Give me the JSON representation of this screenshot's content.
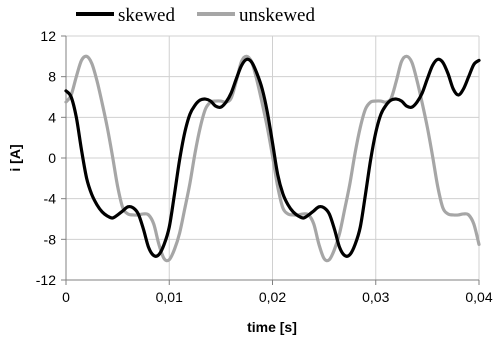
{
  "chart_data": {
    "type": "line",
    "title": "",
    "xlabel": "time [s]",
    "ylabel": "i [A]",
    "xlim": [
      0,
      0.04
    ],
    "ylim": [
      -12,
      12
    ],
    "x_ticks": [
      0,
      0.01,
      0.02,
      0.03,
      0.04
    ],
    "x_tick_labels": [
      "0",
      "0,01",
      "0,02",
      "0,03",
      "0,04"
    ],
    "y_ticks": [
      -12,
      -8,
      -4,
      0,
      4,
      8,
      12
    ],
    "y_tick_labels": [
      "-12",
      "-8",
      "-4",
      "0",
      "4",
      "8",
      "12"
    ],
    "grid": true,
    "legend_position": "top",
    "series": [
      {
        "name": "skewed",
        "color": "#000000",
        "points": [
          [
            0,
            6.6
          ],
          [
            0.0005,
            6.0
          ],
          [
            0.001,
            4.0
          ],
          [
            0.0015,
            0.8
          ],
          [
            0.002,
            -2.0
          ],
          [
            0.0025,
            -3.6
          ],
          [
            0.003,
            -4.6
          ],
          [
            0.0035,
            -5.3
          ],
          [
            0.004,
            -5.7
          ],
          [
            0.0045,
            -5.9
          ],
          [
            0.005,
            -5.6
          ],
          [
            0.0055,
            -5.2
          ],
          [
            0.006,
            -4.8
          ],
          [
            0.0065,
            -4.9
          ],
          [
            0.007,
            -5.5
          ],
          [
            0.0075,
            -7.0
          ],
          [
            0.008,
            -8.8
          ],
          [
            0.0085,
            -9.6
          ],
          [
            0.009,
            -9.5
          ],
          [
            0.0095,
            -8.5
          ],
          [
            0.01,
            -6.8
          ],
          [
            0.0105,
            -3.6
          ],
          [
            0.011,
            -0.2
          ],
          [
            0.0115,
            2.5
          ],
          [
            0.012,
            4.3
          ],
          [
            0.0125,
            5.2
          ],
          [
            0.013,
            5.7
          ],
          [
            0.0135,
            5.8
          ],
          [
            0.014,
            5.6
          ],
          [
            0.0145,
            5.1
          ],
          [
            0.015,
            5.0
          ],
          [
            0.0155,
            5.5
          ],
          [
            0.016,
            6.4
          ],
          [
            0.0165,
            7.8
          ],
          [
            0.017,
            9.1
          ],
          [
            0.0175,
            9.7
          ],
          [
            0.018,
            9.4
          ],
          [
            0.0185,
            8.3
          ],
          [
            0.019,
            6.8
          ],
          [
            0.0195,
            4.5
          ],
          [
            0.02,
            1.5
          ],
          [
            0.0205,
            -1.6
          ],
          [
            0.021,
            -3.5
          ],
          [
            0.0215,
            -4.6
          ],
          [
            0.022,
            -5.3
          ],
          [
            0.0225,
            -5.7
          ],
          [
            0.023,
            -5.9
          ],
          [
            0.0235,
            -5.6
          ],
          [
            0.024,
            -5.2
          ],
          [
            0.0245,
            -4.8
          ],
          [
            0.025,
            -4.9
          ],
          [
            0.0255,
            -5.5
          ],
          [
            0.026,
            -7.0
          ],
          [
            0.0265,
            -8.8
          ],
          [
            0.027,
            -9.6
          ],
          [
            0.0275,
            -9.5
          ],
          [
            0.028,
            -8.5
          ],
          [
            0.0285,
            -6.8
          ],
          [
            0.029,
            -3.6
          ],
          [
            0.0295,
            -0.2
          ],
          [
            0.03,
            2.5
          ],
          [
            0.0305,
            4.3
          ],
          [
            0.031,
            5.2
          ],
          [
            0.0315,
            5.7
          ],
          [
            0.032,
            5.8
          ],
          [
            0.0325,
            5.6
          ],
          [
            0.033,
            5.1
          ],
          [
            0.0335,
            5.0
          ],
          [
            0.034,
            5.5
          ],
          [
            0.0345,
            6.4
          ],
          [
            0.035,
            7.8
          ],
          [
            0.0355,
            9.1
          ],
          [
            0.036,
            9.7
          ],
          [
            0.0365,
            9.4
          ],
          [
            0.037,
            8.3
          ],
          [
            0.0375,
            6.8
          ],
          [
            0.038,
            6.2
          ],
          [
            0.0385,
            6.8
          ],
          [
            0.039,
            8.0
          ],
          [
            0.0395,
            9.2
          ],
          [
            0.04,
            9.6
          ]
        ]
      },
      {
        "name": "unskewed",
        "color": "#a6a6a6",
        "points": [
          [
            0,
            5.5
          ],
          [
            0.0005,
            6.2
          ],
          [
            0.001,
            8.0
          ],
          [
            0.0015,
            9.6
          ],
          [
            0.002,
            10.0
          ],
          [
            0.0025,
            9.3
          ],
          [
            0.003,
            7.6
          ],
          [
            0.0035,
            5.4
          ],
          [
            0.004,
            3.0
          ],
          [
            0.0045,
            0.2
          ],
          [
            0.005,
            -2.8
          ],
          [
            0.0055,
            -4.9
          ],
          [
            0.006,
            -5.5
          ],
          [
            0.0065,
            -5.6
          ],
          [
            0.007,
            -5.6
          ],
          [
            0.0075,
            -5.5
          ],
          [
            0.008,
            -5.6
          ],
          [
            0.0085,
            -6.5
          ],
          [
            0.009,
            -8.5
          ],
          [
            0.0095,
            -9.9
          ],
          [
            0.01,
            -10.0
          ],
          [
            0.0105,
            -9.0
          ],
          [
            0.011,
            -7.4
          ],
          [
            0.0115,
            -5.0
          ],
          [
            0.012,
            -2.5
          ],
          [
            0.0125,
            0.5
          ],
          [
            0.013,
            3.0
          ],
          [
            0.0135,
            4.8
          ],
          [
            0.014,
            5.5
          ],
          [
            0.0145,
            5.6
          ],
          [
            0.015,
            5.6
          ],
          [
            0.0155,
            5.5
          ],
          [
            0.016,
            5.9
          ],
          [
            0.0165,
            7.6
          ],
          [
            0.017,
            9.5
          ],
          [
            0.0175,
            10.0
          ],
          [
            0.018,
            9.4
          ],
          [
            0.0185,
            7.6
          ],
          [
            0.019,
            5.4
          ],
          [
            0.0195,
            3.0
          ],
          [
            0.02,
            0.2
          ],
          [
            0.0205,
            -2.8
          ],
          [
            0.021,
            -4.9
          ],
          [
            0.0215,
            -5.5
          ],
          [
            0.022,
            -5.6
          ],
          [
            0.0225,
            -5.6
          ],
          [
            0.023,
            -5.5
          ],
          [
            0.0235,
            -5.6
          ],
          [
            0.024,
            -6.5
          ],
          [
            0.0245,
            -8.5
          ],
          [
            0.025,
            -9.9
          ],
          [
            0.0255,
            -10.0
          ],
          [
            0.026,
            -9.0
          ],
          [
            0.0265,
            -7.4
          ],
          [
            0.027,
            -5.0
          ],
          [
            0.0275,
            -2.5
          ],
          [
            0.028,
            0.5
          ],
          [
            0.0285,
            3.0
          ],
          [
            0.029,
            4.8
          ],
          [
            0.0295,
            5.5
          ],
          [
            0.03,
            5.6
          ],
          [
            0.0305,
            5.6
          ],
          [
            0.031,
            5.5
          ],
          [
            0.0315,
            5.9
          ],
          [
            0.032,
            7.6
          ],
          [
            0.0325,
            9.5
          ],
          [
            0.033,
            10.0
          ],
          [
            0.0335,
            9.4
          ],
          [
            0.034,
            7.6
          ],
          [
            0.0345,
            5.4
          ],
          [
            0.035,
            3.0
          ],
          [
            0.0355,
            0.2
          ],
          [
            0.036,
            -2.8
          ],
          [
            0.0365,
            -4.9
          ],
          [
            0.037,
            -5.5
          ],
          [
            0.0375,
            -5.6
          ],
          [
            0.038,
            -5.6
          ],
          [
            0.0385,
            -5.5
          ],
          [
            0.039,
            -5.6
          ],
          [
            0.0395,
            -6.5
          ],
          [
            0.04,
            -8.5
          ]
        ]
      }
    ]
  }
}
